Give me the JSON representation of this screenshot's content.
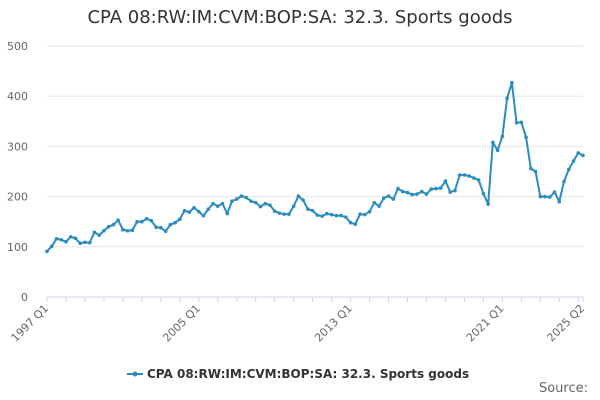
{
  "title": "CPA 08:RW:IM:CVM:BOP:SA: 32.3. Sports goods",
  "source": "Source:",
  "colors": {
    "series": "#2b8cbe",
    "grid": "#e6e6e6",
    "axis": "#ccd6eb"
  },
  "chart_data": {
    "type": "line",
    "title": "CPA 08:RW:IM:CVM:BOP:SA: 32.3. Sports goods",
    "xlabel": "",
    "ylabel": "",
    "ylim": [
      0,
      500
    ],
    "yticks": [
      0,
      100,
      200,
      300,
      400,
      500
    ],
    "x_start": "1997 Q1",
    "x_end": "2025 Q2",
    "xtick_labels": [
      {
        "index": 0,
        "label": "1997 Q1"
      },
      {
        "index": 32,
        "label": "2005 Q1"
      },
      {
        "index": 64,
        "label": "2013 Q1"
      },
      {
        "index": 96,
        "label": "2021 Q1"
      },
      {
        "index": 113,
        "label": "2025 Q2"
      }
    ],
    "grid": true,
    "legend": "bottom-center",
    "series": [
      {
        "name": "CPA 08:RW:IM:CVM:BOP:SA: 32.3. Sports goods",
        "values": [
          91,
          101,
          116,
          114,
          110,
          120,
          117,
          107,
          109,
          108,
          129,
          123,
          132,
          140,
          144,
          153,
          134,
          132,
          133,
          150,
          150,
          156,
          152,
          139,
          138,
          131,
          144,
          148,
          155,
          172,
          169,
          178,
          170,
          162,
          175,
          186,
          181,
          186,
          166,
          191,
          195,
          201,
          198,
          191,
          188,
          180,
          186,
          183,
          171,
          167,
          165,
          165,
          181,
          201,
          193,
          175,
          172,
          163,
          161,
          166,
          164,
          162,
          162,
          159,
          148,
          145,
          165,
          164,
          170,
          188,
          181,
          197,
          201,
          195,
          216,
          210,
          208,
          204,
          205,
          210,
          205,
          215,
          216,
          217,
          231,
          209,
          212,
          243,
          243,
          241,
          237,
          233,
          206,
          185,
          308,
          292,
          320,
          396,
          427,
          347,
          348,
          318,
          256,
          250,
          200,
          200,
          199,
          209,
          190,
          230,
          254,
          271,
          287,
          282
        ]
      }
    ]
  }
}
